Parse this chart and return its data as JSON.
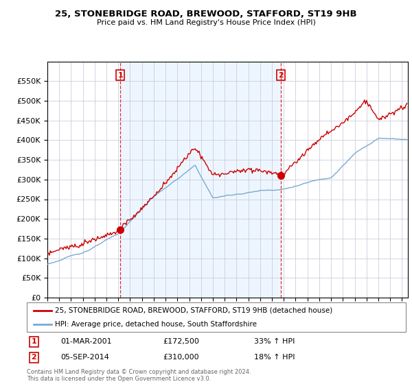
{
  "title": "25, STONEBRIDGE ROAD, BREWOOD, STAFFORD, ST19 9HB",
  "subtitle": "Price paid vs. HM Land Registry's House Price Index (HPI)",
  "red_label": "25, STONEBRIDGE ROAD, BREWOOD, STAFFORD, ST19 9HB (detached house)",
  "blue_label": "HPI: Average price, detached house, South Staffordshire",
  "footer": "Contains HM Land Registry data © Crown copyright and database right 2024.\nThis data is licensed under the Open Government Licence v3.0.",
  "transaction1_date": "01-MAR-2001",
  "transaction1_price": 172500,
  "transaction1_hpi": "33% ↑ HPI",
  "transaction2_date": "05-SEP-2014",
  "transaction2_price": 310000,
  "transaction2_hpi": "18% ↑ HPI",
  "ylim": [
    0,
    600000
  ],
  "yticks": [
    0,
    50000,
    100000,
    150000,
    200000,
    250000,
    300000,
    350000,
    400000,
    450000,
    500000,
    550000
  ],
  "red_color": "#cc0000",
  "blue_color": "#7aaacf",
  "vline_color": "#cc0000",
  "vline1_x": 2001.17,
  "vline2_x": 2014.75,
  "dot1_x": 2001.17,
  "dot1_y": 172500,
  "dot2_x": 2014.75,
  "dot2_y": 310000,
  "xmin": 1995,
  "xmax": 2025.5,
  "bg_fill_color": "#ddeeff"
}
